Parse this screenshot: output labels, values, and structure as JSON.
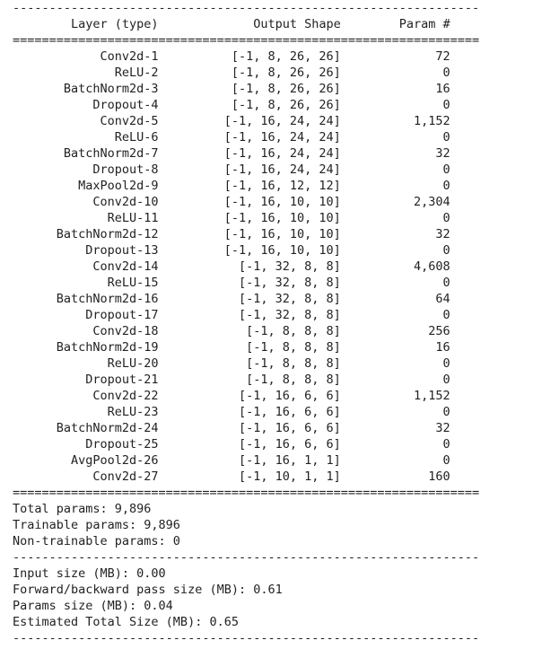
{
  "separators": {
    "dash": "----------------------------------------------------------------",
    "equals": "================================================================"
  },
  "header": {
    "layer": "Layer (type)",
    "output_shape": "Output Shape",
    "param": "Param #"
  },
  "rows": [
    {
      "layer": "Conv2d-1",
      "shape": "[-1, 8, 26, 26]",
      "params": "72"
    },
    {
      "layer": "ReLU-2",
      "shape": "[-1, 8, 26, 26]",
      "params": "0"
    },
    {
      "layer": "BatchNorm2d-3",
      "shape": "[-1, 8, 26, 26]",
      "params": "16"
    },
    {
      "layer": "Dropout-4",
      "shape": "[-1, 8, 26, 26]",
      "params": "0"
    },
    {
      "layer": "Conv2d-5",
      "shape": "[-1, 16, 24, 24]",
      "params": "1,152"
    },
    {
      "layer": "ReLU-6",
      "shape": "[-1, 16, 24, 24]",
      "params": "0"
    },
    {
      "layer": "BatchNorm2d-7",
      "shape": "[-1, 16, 24, 24]",
      "params": "32"
    },
    {
      "layer": "Dropout-8",
      "shape": "[-1, 16, 24, 24]",
      "params": "0"
    },
    {
      "layer": "MaxPool2d-9",
      "shape": "[-1, 16, 12, 12]",
      "params": "0"
    },
    {
      "layer": "Conv2d-10",
      "shape": "[-1, 16, 10, 10]",
      "params": "2,304"
    },
    {
      "layer": "ReLU-11",
      "shape": "[-1, 16, 10, 10]",
      "params": "0"
    },
    {
      "layer": "BatchNorm2d-12",
      "shape": "[-1, 16, 10, 10]",
      "params": "32"
    },
    {
      "layer": "Dropout-13",
      "shape": "[-1, 16, 10, 10]",
      "params": "0"
    },
    {
      "layer": "Conv2d-14",
      "shape": "[-1, 32, 8, 8]",
      "params": "4,608"
    },
    {
      "layer": "ReLU-15",
      "shape": "[-1, 32, 8, 8]",
      "params": "0"
    },
    {
      "layer": "BatchNorm2d-16",
      "shape": "[-1, 32, 8, 8]",
      "params": "64"
    },
    {
      "layer": "Dropout-17",
      "shape": "[-1, 32, 8, 8]",
      "params": "0"
    },
    {
      "layer": "Conv2d-18",
      "shape": "[-1, 8, 8, 8]",
      "params": "256"
    },
    {
      "layer": "BatchNorm2d-19",
      "shape": "[-1, 8, 8, 8]",
      "params": "16"
    },
    {
      "layer": "ReLU-20",
      "shape": "[-1, 8, 8, 8]",
      "params": "0"
    },
    {
      "layer": "Dropout-21",
      "shape": "[-1, 8, 8, 8]",
      "params": "0"
    },
    {
      "layer": "Conv2d-22",
      "shape": "[-1, 16, 6, 6]",
      "params": "1,152"
    },
    {
      "layer": "ReLU-23",
      "shape": "[-1, 16, 6, 6]",
      "params": "0"
    },
    {
      "layer": "BatchNorm2d-24",
      "shape": "[-1, 16, 6, 6]",
      "params": "32"
    },
    {
      "layer": "Dropout-25",
      "shape": "[-1, 16, 6, 6]",
      "params": "0"
    },
    {
      "layer": "AvgPool2d-26",
      "shape": "[-1, 16, 1, 1]",
      "params": "0"
    },
    {
      "layer": "Conv2d-27",
      "shape": "[-1, 10, 1, 1]",
      "params": "160"
    }
  ],
  "totals": {
    "total_params": "Total params: 9,896",
    "trainable_params": "Trainable params: 9,896",
    "non_trainable_params": "Non-trainable params: 0"
  },
  "sizes": {
    "input_size": "Input size (MB): 0.00",
    "forward_backward": "Forward/backward pass size (MB): 0.61",
    "params_size": "Params size (MB): 0.04",
    "estimated_total": "Estimated Total Size (MB): 0.65"
  }
}
